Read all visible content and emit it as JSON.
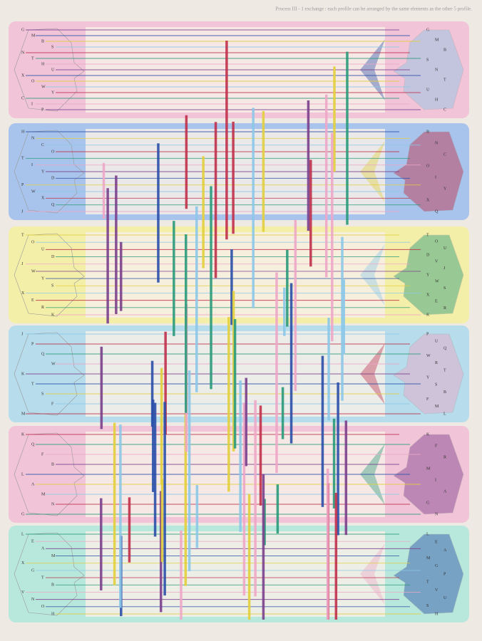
{
  "header": {
    "title": "Process III - 1  exchange : each profile can be arranged by the same elements as the other 5 profile."
  },
  "bands": [
    {
      "left": [
        "G",
        "M",
        "B",
        "S",
        "N",
        "T",
        "H",
        "U",
        "X",
        "O",
        "W",
        "Y",
        "C",
        "I",
        "P"
      ],
      "right": [
        "G",
        "M",
        "B",
        "S",
        "N",
        "T",
        "U",
        "H",
        "C"
      ]
    },
    {
      "left": [
        "H",
        "N",
        "C",
        "O",
        "T",
        "I",
        "Y",
        "D",
        "P",
        "W",
        "X",
        "Q",
        "J"
      ],
      "right": [
        "B",
        "N",
        "C",
        "O",
        "I",
        "Y",
        "X",
        "Q"
      ]
    },
    {
      "left": [
        "T",
        "O",
        "U",
        "D",
        "J",
        "W",
        "Y",
        "S",
        "X",
        "E",
        "R",
        "K"
      ],
      "right": [
        "T",
        "O",
        "U",
        "D",
        "V",
        "J",
        "Y",
        "W",
        "S",
        "X",
        "E",
        "R",
        "K"
      ]
    },
    {
      "left": [
        "J",
        "P",
        "Q",
        "W",
        "K",
        "T",
        "S",
        "F",
        "M"
      ],
      "right": [
        "P",
        "U",
        "Q",
        "W",
        "R",
        "T",
        "Y",
        "S",
        "B",
        "F",
        "M",
        "L"
      ]
    },
    {
      "left": [
        "K",
        "Q",
        "F",
        "B",
        "L",
        "A",
        "M",
        "N",
        "G"
      ],
      "right": [
        "K",
        "F",
        "R",
        "M",
        "I",
        "A",
        "G",
        "N"
      ]
    },
    {
      "left": [
        "L",
        "E",
        "A",
        "M",
        "X",
        "G",
        "T",
        "B",
        "V",
        "N",
        "O",
        "H"
      ],
      "right": [
        "L",
        "E",
        "A",
        "M",
        "G",
        "P",
        "T",
        "V",
        "U",
        "S",
        "H"
      ]
    }
  ]
}
